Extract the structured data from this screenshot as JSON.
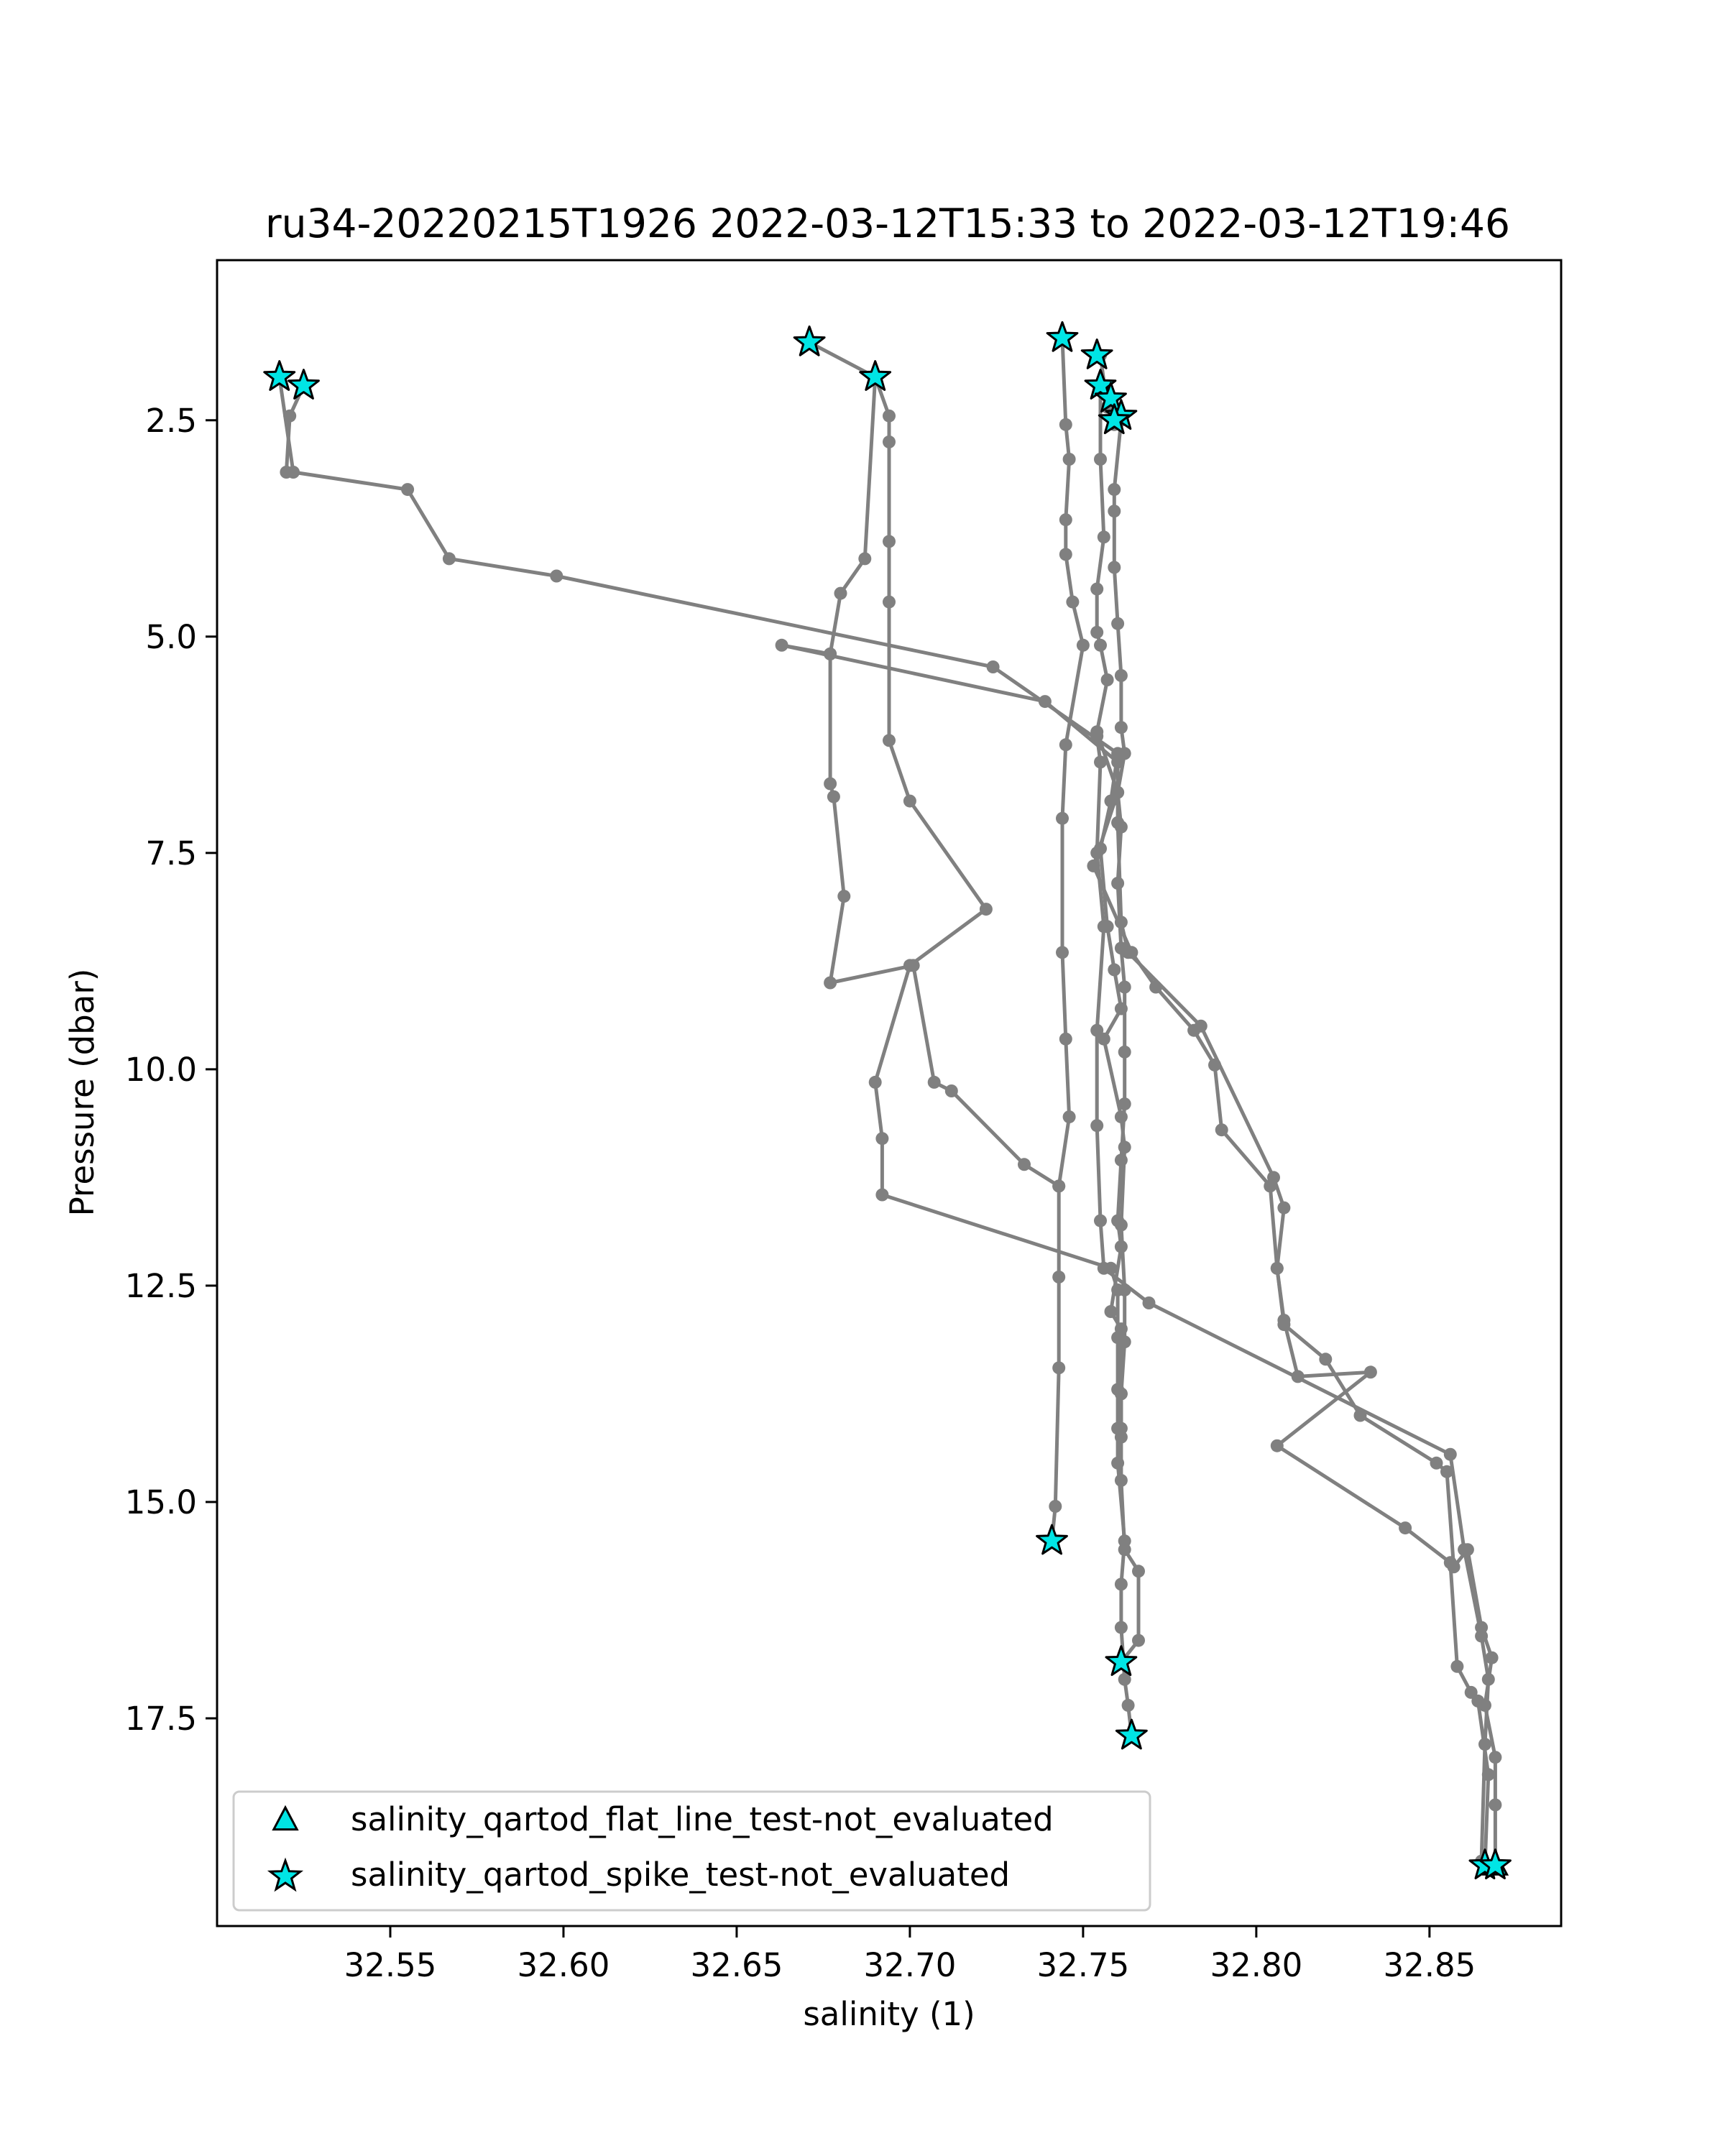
{
  "chart_data": {
    "type": "scatter",
    "title": "ru34-20220215T1926 2022-03-12T15:33 to 2022-03-12T19:46",
    "xlabel": "salinity (1)",
    "ylabel": "Pressure (dbar)",
    "xlim": [
      32.5,
      32.888
    ],
    "ylim": [
      19.9,
      0.65
    ],
    "y_inverted": true,
    "grid": false,
    "xticks": [
      "32.55",
      "32.60",
      "32.65",
      "32.70",
      "32.75",
      "32.80",
      "32.85"
    ],
    "xtick_values": [
      32.55,
      32.6,
      32.65,
      32.7,
      32.75,
      32.8,
      32.85
    ],
    "yticks": [
      "2.5",
      "5.0",
      "7.5",
      "10.0",
      "12.5",
      "15.0",
      "17.5"
    ],
    "ytick_values": [
      2.5,
      5.0,
      7.5,
      10.0,
      12.5,
      15.0,
      17.5
    ],
    "line_color": "#808080",
    "marker_color": "#00e5e5",
    "legend": {
      "placement": "lower-left",
      "entries": [
        {
          "label": "salinity_qartod_flat_line_test-not_evaluated",
          "marker": "triangle"
        },
        {
          "label": "salinity_qartod_spike_test-not_evaluated",
          "marker": "star"
        }
      ]
    },
    "series": [
      {
        "points": [
          [
            32.518,
            2.0
          ],
          [
            32.522,
            3.1
          ],
          [
            32.555,
            3.3
          ],
          [
            32.567,
            4.1
          ],
          [
            32.598,
            4.3
          ],
          [
            32.724,
            5.35
          ],
          [
            32.76,
            6.35
          ],
          [
            32.758,
            6.9
          ],
          [
            32.755,
            7.45
          ],
          [
            32.757,
            8.35
          ],
          [
            32.759,
            8.85
          ],
          [
            32.761,
            9.3
          ],
          [
            32.756,
            9.65
          ],
          [
            32.761,
            10.55
          ],
          [
            32.762,
            10.9
          ],
          [
            32.761,
            11.8
          ],
          [
            32.762,
            12.55
          ],
          [
            32.762,
            13.15
          ],
          [
            32.761,
            13.75
          ],
          [
            32.761,
            14.15
          ],
          [
            32.761,
            14.75
          ],
          [
            32.762,
            15.55
          ],
          [
            32.766,
            15.8
          ],
          [
            32.766,
            16.6
          ],
          [
            32.761,
            16.85
          ]
        ]
      },
      {
        "points": [
          [
            32.525,
            2.1
          ],
          [
            32.521,
            2.45
          ],
          [
            32.52,
            3.1
          ]
        ]
      },
      {
        "points": [
          [
            32.671,
            1.6
          ],
          [
            32.69,
            2.0
          ],
          [
            32.694,
            2.45
          ],
          [
            32.694,
            2.75
          ],
          [
            32.694,
            3.9
          ],
          [
            32.694,
            4.6
          ],
          [
            32.694,
            6.2
          ],
          [
            32.7,
            6.9
          ],
          [
            32.722,
            8.15
          ],
          [
            32.7,
            8.8
          ],
          [
            32.69,
            10.15
          ],
          [
            32.692,
            10.8
          ],
          [
            32.692,
            11.45
          ],
          [
            32.758,
            12.3
          ],
          [
            32.76,
            12.55
          ],
          [
            32.76,
            13.1
          ],
          [
            32.76,
            13.7
          ],
          [
            32.76,
            14.15
          ],
          [
            32.76,
            14.55
          ],
          [
            32.762,
            15.45
          ],
          [
            32.761,
            15.95
          ],
          [
            32.761,
            16.45
          ],
          [
            32.762,
            17.05
          ],
          [
            32.763,
            17.35
          ],
          [
            32.764,
            17.7
          ]
        ]
      },
      {
        "points": [
          [
            32.69,
            2.0
          ],
          [
            32.687,
            4.1
          ],
          [
            32.68,
            4.5
          ],
          [
            32.677,
            5.2
          ],
          [
            32.663,
            5.1
          ],
          [
            32.739,
            5.75
          ],
          [
            32.76,
            6.45
          ],
          [
            32.76,
            7.15
          ],
          [
            32.761,
            8.3
          ],
          [
            32.763,
            8.65
          ],
          [
            32.784,
            9.5
          ],
          [
            32.805,
            11.25
          ],
          [
            32.808,
            11.6
          ],
          [
            32.806,
            12.3
          ],
          [
            32.808,
            12.9
          ],
          [
            32.812,
            13.55
          ],
          [
            32.833,
            13.5
          ],
          [
            32.806,
            14.35
          ],
          [
            32.843,
            15.3
          ],
          [
            32.856,
            15.7
          ],
          [
            32.858,
            16.9
          ],
          [
            32.862,
            17.2
          ],
          [
            32.864,
            17.3
          ],
          [
            32.867,
            18.15
          ],
          [
            32.866,
            19.2
          ]
        ]
      },
      {
        "points": [
          [
            32.744,
            1.55
          ],
          [
            32.745,
            2.55
          ],
          [
            32.746,
            2.95
          ],
          [
            32.745,
            3.65
          ],
          [
            32.745,
            4.05
          ],
          [
            32.747,
            4.6
          ],
          [
            32.75,
            5.1
          ],
          [
            32.745,
            6.25
          ],
          [
            32.744,
            7.1
          ],
          [
            32.744,
            8.65
          ],
          [
            32.745,
            9.65
          ],
          [
            32.746,
            10.55
          ],
          [
            32.743,
            11.35
          ],
          [
            32.733,
            11.1
          ],
          [
            32.712,
            10.25
          ],
          [
            32.707,
            10.15
          ],
          [
            32.701,
            8.8
          ],
          [
            32.677,
            9.0
          ],
          [
            32.681,
            8.0
          ],
          [
            32.678,
            6.85
          ],
          [
            32.677,
            6.7
          ],
          [
            32.677,
            5.2
          ]
        ]
      },
      {
        "points": [
          [
            32.743,
            11.35
          ],
          [
            32.743,
            12.4
          ],
          [
            32.743,
            13.45
          ],
          [
            32.742,
            15.05
          ],
          [
            32.741,
            15.45
          ]
        ]
      },
      {
        "points": [
          [
            32.755,
            1.75
          ],
          [
            32.757,
            2.35
          ],
          [
            32.761,
            2.5
          ],
          [
            32.759,
            3.3
          ],
          [
            32.759,
            3.55
          ],
          [
            32.759,
            4.2
          ],
          [
            32.76,
            4.85
          ],
          [
            32.761,
            5.45
          ],
          [
            32.761,
            6.05
          ],
          [
            32.762,
            6.35
          ],
          [
            32.76,
            6.8
          ],
          [
            32.761,
            7.2
          ],
          [
            32.76,
            7.85
          ],
          [
            32.761,
            8.6
          ],
          [
            32.762,
            9.05
          ],
          [
            32.762,
            9.8
          ],
          [
            32.762,
            10.4
          ],
          [
            32.761,
            11.05
          ],
          [
            32.76,
            11.75
          ],
          [
            32.761,
            12.05
          ],
          [
            32.758,
            12.8
          ],
          [
            32.761,
            13.0
          ],
          [
            32.761,
            13.75
          ],
          [
            32.761,
            14.25
          ]
        ]
      },
      {
        "points": [
          [
            32.755,
            2.1
          ],
          [
            32.755,
            2.95
          ],
          [
            32.756,
            3.85
          ],
          [
            32.754,
            4.45
          ],
          [
            32.754,
            4.95
          ],
          [
            32.755,
            5.1
          ],
          [
            32.757,
            5.5
          ],
          [
            32.754,
            6.1
          ],
          [
            32.76,
            6.8
          ],
          [
            32.753,
            7.65
          ],
          [
            32.764,
            8.65
          ],
          [
            32.771,
            9.05
          ],
          [
            32.782,
            9.55
          ],
          [
            32.788,
            9.95
          ],
          [
            32.79,
            10.7
          ],
          [
            32.804,
            11.35
          ],
          [
            32.806,
            12.3
          ],
          [
            32.808,
            12.95
          ],
          [
            32.82,
            13.35
          ],
          [
            32.83,
            14.0
          ],
          [
            32.852,
            14.55
          ],
          [
            32.855,
            14.65
          ],
          [
            32.857,
            15.75
          ],
          [
            32.861,
            15.55
          ],
          [
            32.865,
            16.45
          ],
          [
            32.868,
            16.8
          ],
          [
            32.866,
            17.35
          ],
          [
            32.869,
            17.95
          ],
          [
            32.869,
            18.5
          ],
          [
            32.869,
            19.2
          ]
        ]
      },
      {
        "points": [
          [
            32.754,
            6.15
          ],
          [
            32.755,
            6.45
          ],
          [
            32.754,
            7.5
          ],
          [
            32.756,
            8.35
          ],
          [
            32.754,
            9.55
          ],
          [
            32.754,
            10.65
          ],
          [
            32.755,
            11.75
          ],
          [
            32.756,
            12.3
          ],
          [
            32.769,
            12.7
          ],
          [
            32.856,
            14.45
          ],
          [
            32.86,
            15.55
          ],
          [
            32.865,
            16.55
          ],
          [
            32.867,
            17.05
          ],
          [
            32.866,
            17.8
          ],
          [
            32.865,
            19.15
          ]
        ]
      },
      {
        "points": [
          [
            32.755,
            2.1
          ],
          [
            32.758,
            2.25
          ],
          [
            32.76,
            2.45
          ],
          [
            32.759,
            2.55
          ]
        ]
      }
    ],
    "spike_flag_points": [
      [
        32.518,
        2.0
      ],
      [
        32.525,
        2.1
      ],
      [
        32.671,
        1.6
      ],
      [
        32.69,
        2.0
      ],
      [
        32.744,
        1.55
      ],
      [
        32.754,
        1.75
      ],
      [
        32.755,
        2.1
      ],
      [
        32.758,
        2.25
      ],
      [
        32.761,
        2.45
      ],
      [
        32.759,
        2.5
      ],
      [
        32.741,
        15.45
      ],
      [
        32.761,
        16.85
      ],
      [
        32.764,
        17.7
      ],
      [
        32.866,
        19.2
      ],
      [
        32.869,
        19.2
      ]
    ],
    "flat_line_flag_points": [
      [
        32.869,
        19.2
      ]
    ]
  }
}
